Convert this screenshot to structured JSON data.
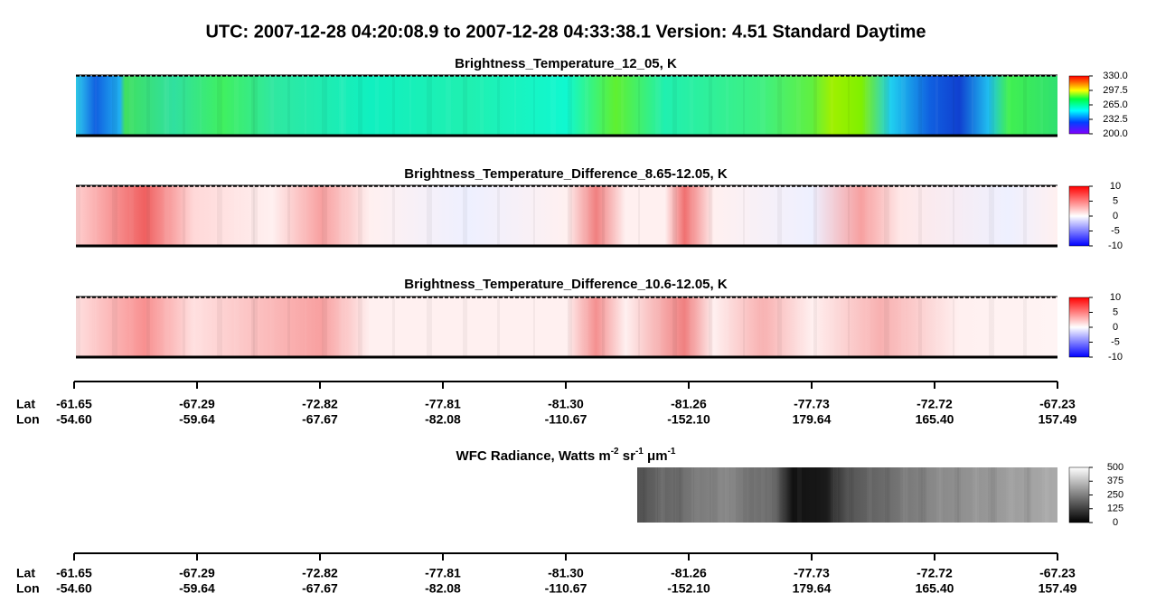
{
  "title": "UTC:  2007-12-28   04:20:08.9  to  2007-12-28   04:33:38.1    Version: 4.51  Standard Daytime",
  "panels": [
    {
      "title": "Brightness_Temperature_12_05, K",
      "colormap": "rainbow",
      "colorbar": {
        "lim": [
          200,
          330
        ],
        "ticks": [
          {
            "value": 200,
            "label": "200.0"
          },
          {
            "value": 232.5,
            "label": "232.5"
          },
          {
            "value": 265,
            "label": "265.0"
          },
          {
            "value": 297.5,
            "label": "297.5"
          },
          {
            "value": 330,
            "label": "330.0"
          }
        ]
      }
    },
    {
      "title": "Brightness_Temperature_Difference_8.65-12.05, K",
      "colormap": "diverging",
      "colorbar": {
        "lim": [
          -10,
          10
        ],
        "ticks": [
          -10,
          -5,
          0,
          5,
          10
        ]
      }
    },
    {
      "title": "Brightness_Temperature_Difference_10.6-12.05, K",
      "colormap": "diverging",
      "colorbar": {
        "lim": [
          -10,
          10
        ],
        "ticks": [
          -10,
          -5,
          0,
          5,
          10
        ]
      }
    },
    {
      "title_parts": [
        "WFC Radiance, Watts m",
        "-2",
        " sr",
        "-1",
        " μm",
        "-1"
      ],
      "colormap": "gray",
      "colorbar": {
        "lim": [
          0,
          500
        ],
        "ticks": [
          0,
          125,
          250,
          375,
          500
        ]
      }
    }
  ],
  "axis": {
    "lat_label": "Lat",
    "lon_label": "Lon",
    "lat": [
      "-61.65",
      "-67.29",
      "-72.82",
      "-77.81",
      "-81.30",
      "-81.26",
      "-77.73",
      "-72.72",
      "-67.23"
    ],
    "lon": [
      "-54.60",
      "-59.64",
      "-67.67",
      "-82.08",
      "-110.67",
      "-152.10",
      "179.64",
      "165.40",
      "157.49"
    ]
  }
}
